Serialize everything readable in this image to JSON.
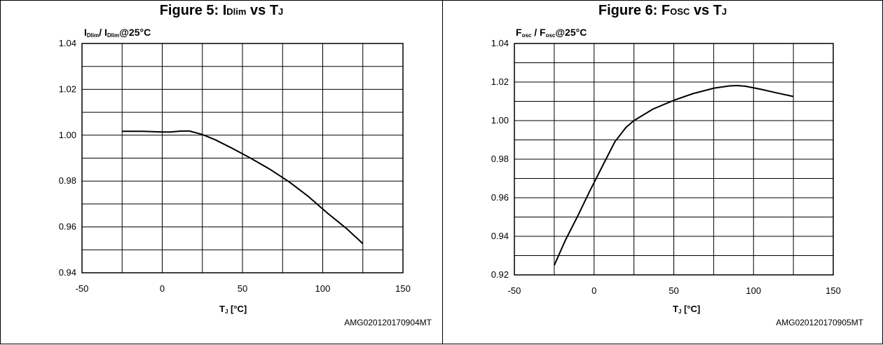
{
  "charts": [
    {
      "figure_title_prefix": "Figure 5: I",
      "figure_title_sub": "Dlim",
      "figure_title_suffix": " vs T",
      "figure_title_sub2": "J",
      "ylabel_main1": "I",
      "ylabel_sub1": "Dlim",
      "ylabel_mid": "/ I",
      "ylabel_sub2": "Dlim",
      "ylabel_end": "@25°C",
      "xlabel_main": "T",
      "xlabel_sub": "J",
      "xlabel_unit": "  [°C]",
      "code": "AMG020120170904MT"
    },
    {
      "figure_title_prefix": "Figure 6: F",
      "figure_title_sub": "OSC",
      "figure_title_suffix": " vs T",
      "figure_title_sub2": "J",
      "ylabel_main1": "F",
      "ylabel_sub1": "osc",
      "ylabel_mid": " / F",
      "ylabel_sub2": "osc",
      "ylabel_end": "@25°C",
      "xlabel_main": "T",
      "xlabel_sub": "J",
      "xlabel_unit": "  [°C]",
      "code": "AMG020120170905MT"
    }
  ],
  "chart_data": [
    {
      "type": "line",
      "xlim": [
        -50,
        150
      ],
      "ylim": [
        0.94,
        1.04
      ],
      "x_ticks": [
        "-50",
        "0",
        "50",
        "100",
        "150"
      ],
      "y_ticks": [
        "0.94",
        "0.96",
        "0.98",
        "1.00",
        "1.02",
        "1.04"
      ],
      "grid": true,
      "series": [
        {
          "x": [
            -25,
            -12,
            0,
            5,
            12,
            17,
            25,
            33,
            43,
            55,
            67,
            79,
            91,
            103,
            115,
            125
          ],
          "values": [
            1.0017,
            1.0017,
            1.0014,
            1.0014,
            1.0018,
            1.0018,
            1.0003,
            0.998,
            0.9945,
            0.99,
            0.9852,
            0.9797,
            0.9733,
            0.966,
            0.9592,
            0.9527
          ]
        }
      ]
    },
    {
      "type": "line",
      "xlim": [
        -50,
        150
      ],
      "ylim": [
        0.92,
        1.04
      ],
      "x_ticks": [
        "-50",
        "0",
        "50",
        "100",
        "150"
      ],
      "y_ticks": [
        "0.92",
        "0.94",
        "0.96",
        "0.98",
        "1.00",
        "1.02",
        "1.04"
      ],
      "grid": true,
      "series": [
        {
          "x": [
            -25,
            -18,
            -10,
            -3,
            5,
            13,
            20,
            25,
            37,
            50,
            62,
            75,
            85,
            90,
            95,
            105,
            115,
            125
          ],
          "values": [
            0.925,
            0.938,
            0.951,
            0.963,
            0.976,
            0.989,
            0.9965,
            1.0,
            1.006,
            1.0105,
            1.014,
            1.0168,
            1.018,
            1.0182,
            1.0178,
            1.0162,
            1.0143,
            1.0125
          ]
        }
      ]
    }
  ]
}
